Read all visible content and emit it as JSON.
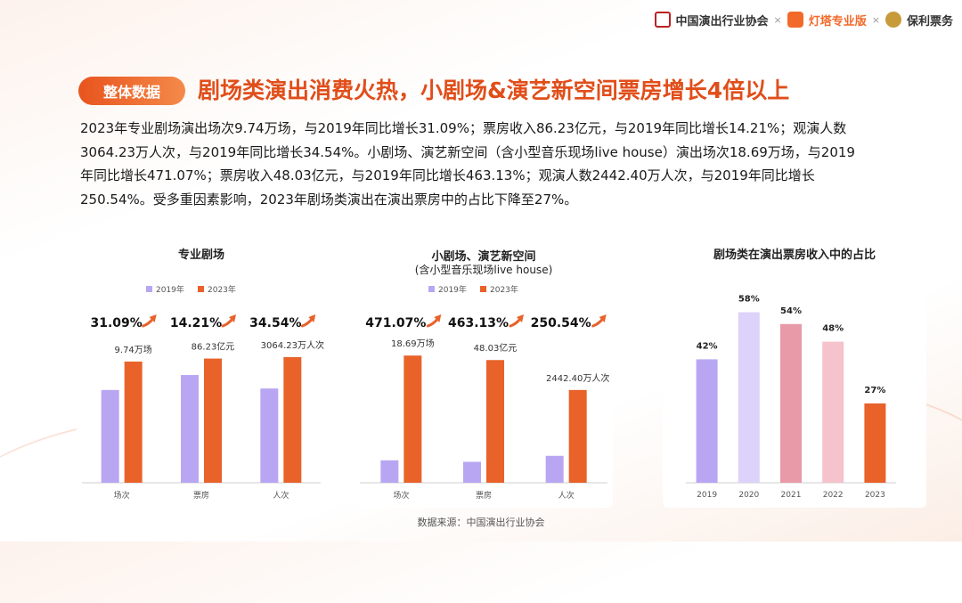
{
  "header": {
    "logos": [
      "中国演出行业协会",
      "灯塔专业版",
      "保利票务"
    ],
    "separator": "×"
  },
  "badge": "整体数据",
  "title": "剧场类演出消费火热，小剧场&演艺新空间票房增长4倍以上",
  "paragraph_lines": [
    "2023年专业剧场演出场次9.74万场，与2019年同比增长31.09%；票房收入86.23亿元，与2019年同比增长14.21%；观演人数",
    "3064.23万人次，与2019年同比增长34.54%。小剧场、演艺新空间（含小型音乐现场live house）演出场次18.69万场，与2019",
    "年同比增长471.07%；票房收入48.03亿元，与2019年同比增长463.13%；观演人数2442.40万人次，与2019年同比增长",
    "250.54%。受多重因素影响，2023年剧场类演出在演出票房中的占比下降至27%。"
  ],
  "source": "数据来源：中国演出行业协会",
  "colors": {
    "y2019": "#b9a6f2",
    "y2023": "#e8622a",
    "accent": "#e04e1a"
  },
  "chart_data": [
    {
      "type": "bar",
      "title": "专业剧场",
      "subtitle": "",
      "categories": [
        "场次",
        "票房",
        "人次"
      ],
      "series": [
        {
          "name": "2019年",
          "values": [
            0.62,
            0.72,
            0.63
          ]
        },
        {
          "name": "2023年",
          "values": [
            0.81,
            0.83,
            0.84
          ]
        }
      ],
      "growth_labels": [
        "31.09%",
        "14.21%",
        "34.54%"
      ],
      "value_labels_2023": [
        "9.74万场",
        "86.23亿元",
        "3064.23万人次"
      ],
      "ylim": [
        0,
        1
      ],
      "legend": "top"
    },
    {
      "type": "bar",
      "title": "小剧场、演艺新空间",
      "subtitle": "(含小型音乐现场live house)",
      "categories": [
        "场次",
        "票房",
        "人次"
      ],
      "series": [
        {
          "name": "2019年",
          "values": [
            0.15,
            0.14,
            0.18
          ]
        },
        {
          "name": "2023年",
          "values": [
            0.85,
            0.82,
            0.62
          ]
        }
      ],
      "growth_labels": [
        "471.07%",
        "463.13%",
        "250.54%"
      ],
      "value_labels_2023": [
        "18.69万场",
        "48.03亿元",
        "2442.40万人次"
      ],
      "ylim": [
        0,
        1
      ],
      "legend": "top"
    },
    {
      "type": "bar",
      "title": "剧场类在演出票房收入中的占比",
      "categories": [
        "2019",
        "2020",
        "2021",
        "2022",
        "2023"
      ],
      "values": [
        42,
        58,
        54,
        48,
        27
      ],
      "value_labels": [
        "42%",
        "58%",
        "54%",
        "48%",
        "27%"
      ],
      "bar_colors": [
        "#b9a6f2",
        "#dcd2fa",
        "#e89aa8",
        "#f5c3cb",
        "#e8622a"
      ],
      "ylim": [
        0,
        60
      ]
    }
  ]
}
